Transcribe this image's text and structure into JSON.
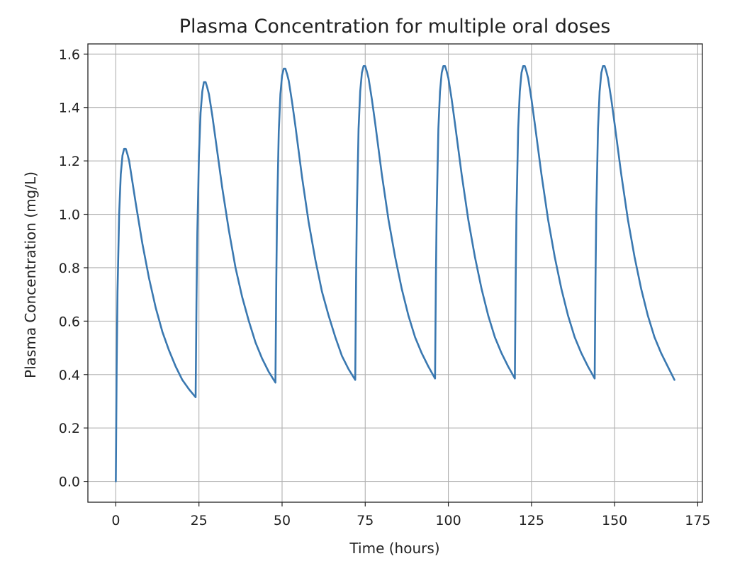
{
  "chart_data": {
    "type": "line",
    "title": "Plasma Concentration for multiple oral doses",
    "xlabel": "Time (hours)",
    "ylabel": "Plasma Concentration (mg/L)",
    "xlim": [
      -8.4,
      176.4
    ],
    "ylim": [
      -0.078,
      1.638
    ],
    "xticks": [
      0,
      25,
      50,
      75,
      100,
      125,
      150,
      175
    ],
    "yticks": [
      0.0,
      0.2,
      0.4,
      0.6,
      0.8,
      1.0,
      1.2,
      1.4,
      1.6
    ],
    "xtick_labels": [
      "0",
      "25",
      "50",
      "75",
      "100",
      "125",
      "150",
      "175"
    ],
    "ytick_labels": [
      "0.0",
      "0.2",
      "0.4",
      "0.6",
      "0.8",
      "1.0",
      "1.2",
      "1.4",
      "1.6"
    ],
    "grid": true,
    "series": [
      {
        "color": "#3a78b0",
        "x": [
          0,
          0.25,
          0.5,
          1,
          1.5,
          2,
          2.5,
          3,
          3.5,
          4,
          5,
          6,
          8,
          10,
          12,
          14,
          16,
          18,
          20,
          22,
          24,
          24.25,
          24.5,
          25,
          25.5,
          26,
          26.5,
          27,
          27.5,
          28,
          29,
          30,
          32,
          34,
          36,
          38,
          40,
          42,
          44,
          46,
          48,
          48.25,
          48.5,
          49,
          49.5,
          50,
          50.5,
          51,
          51.5,
          52,
          53,
          54,
          56,
          58,
          60,
          62,
          64,
          66,
          68,
          70,
          72,
          72.25,
          72.5,
          73,
          73.5,
          74,
          74.5,
          75,
          75.5,
          76,
          77,
          78,
          80,
          82,
          84,
          86,
          88,
          90,
          92,
          94,
          96,
          96.25,
          96.5,
          97,
          97.5,
          98,
          98.5,
          99,
          99.5,
          100,
          101,
          102,
          104,
          106,
          108,
          110,
          112,
          114,
          116,
          118,
          120,
          120.25,
          120.5,
          121,
          121.5,
          122,
          122.5,
          123,
          123.5,
          124,
          125,
          126,
          128,
          130,
          132,
          134,
          136,
          138,
          140,
          142,
          144,
          144.25,
          144.5,
          145,
          145.5,
          146,
          146.5,
          147,
          147.5,
          148,
          149,
          150,
          152,
          154,
          156,
          158,
          160,
          162,
          164,
          166,
          168
        ],
        "values": [
          0.0,
          0.43,
          0.71,
          1.0,
          1.15,
          1.22,
          1.245,
          1.245,
          1.225,
          1.2,
          1.12,
          1.04,
          0.89,
          0.76,
          0.65,
          0.56,
          0.49,
          0.43,
          0.38,
          0.345,
          0.315,
          0.67,
          0.93,
          1.22,
          1.38,
          1.46,
          1.495,
          1.495,
          1.475,
          1.45,
          1.37,
          1.28,
          1.1,
          0.94,
          0.8,
          0.69,
          0.6,
          0.52,
          0.46,
          0.41,
          0.37,
          0.75,
          1.0,
          1.31,
          1.45,
          1.52,
          1.545,
          1.545,
          1.525,
          1.5,
          1.42,
          1.33,
          1.14,
          0.97,
          0.83,
          0.71,
          0.62,
          0.54,
          0.47,
          0.42,
          0.38,
          0.76,
          1.01,
          1.32,
          1.46,
          1.53,
          1.555,
          1.555,
          1.535,
          1.51,
          1.43,
          1.34,
          1.15,
          0.98,
          0.84,
          0.72,
          0.62,
          0.54,
          0.48,
          0.43,
          0.385,
          0.76,
          1.01,
          1.32,
          1.46,
          1.53,
          1.555,
          1.555,
          1.535,
          1.51,
          1.43,
          1.34,
          1.15,
          0.98,
          0.84,
          0.72,
          0.62,
          0.54,
          0.48,
          0.43,
          0.385,
          0.76,
          1.01,
          1.32,
          1.46,
          1.53,
          1.555,
          1.555,
          1.535,
          1.51,
          1.43,
          1.34,
          1.15,
          0.98,
          0.84,
          0.72,
          0.62,
          0.54,
          0.48,
          0.43,
          0.385,
          0.76,
          1.01,
          1.32,
          1.46,
          1.53,
          1.555,
          1.555,
          1.535,
          1.51,
          1.43,
          1.34,
          1.15,
          0.98,
          0.84,
          0.72,
          0.62,
          0.54,
          0.48,
          0.43,
          0.38
        ]
      }
    ]
  }
}
